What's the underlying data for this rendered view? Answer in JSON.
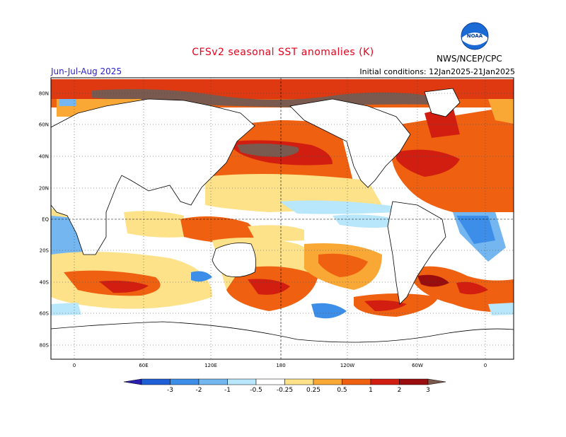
{
  "header": {
    "title": "CFSv2 seasonal SST anomalies (K)",
    "season": "Jun-Jul-Aug 2025",
    "initial_conditions": "Initial conditions: 12Jan2025-21Jan2025",
    "org": "NWS/NCEP/CPC",
    "logo_text": "NOAA"
  },
  "map": {
    "lat_labels": [
      "80N",
      "60N",
      "40N",
      "20N",
      "EQ",
      "20S",
      "40S",
      "60S",
      "80S"
    ],
    "lon_labels": [
      "0",
      "60E",
      "120E",
      "180",
      "120W",
      "60W",
      "0"
    ]
  },
  "colorbar": {
    "labels": [
      "-3",
      "-2",
      "-1",
      "-0.5",
      "-0.25",
      "0.25",
      "0.5",
      "1",
      "2",
      "3"
    ],
    "colors": [
      "#2a1fb0",
      "#1f5fd6",
      "#3c8ee8",
      "#73b6f0",
      "#b8e6fb",
      "#ffffff",
      "#fde28a",
      "#f9a836",
      "#ef6110",
      "#d21e10",
      "#9a0d0e",
      "#7a5a4e"
    ]
  }
}
